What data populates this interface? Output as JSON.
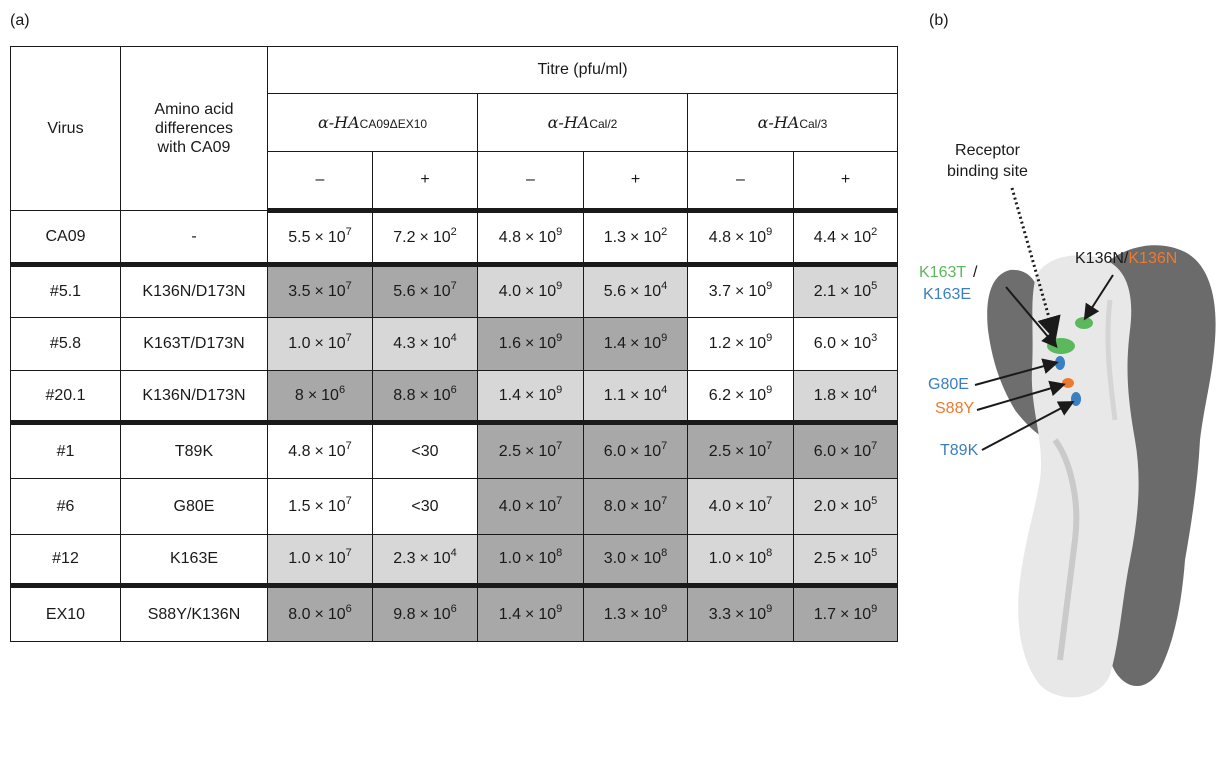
{
  "panel_labels": {
    "a": "(a)",
    "b": "(b)"
  },
  "table": {
    "header": {
      "virus": "Virus",
      "amino_acid": [
        "Amino acid",
        "differences",
        "with CA09"
      ],
      "titre": "Titre (pfu/ml)",
      "antibodies": [
        {
          "prefix": "α-HA",
          "subscript": "CA09ΔEX10"
        },
        {
          "prefix": "α-HA",
          "subscript": "Cal/2"
        },
        {
          "prefix": "α-HA",
          "subscript": "Cal/3"
        }
      ],
      "signs": [
        "–",
        "+",
        "–",
        "+",
        "–",
        "+"
      ]
    },
    "rows": [
      {
        "virus": "CA09",
        "differences": "-",
        "cells": [
          {
            "m": "5.5",
            "e": "7",
            "shade": 0
          },
          {
            "m": "7.2",
            "e": "2",
            "shade": 0
          },
          {
            "m": "4.8",
            "e": "9",
            "shade": 0
          },
          {
            "m": "1.3",
            "e": "2",
            "shade": 0
          },
          {
            "m": "4.8",
            "e": "9",
            "shade": 0
          },
          {
            "m": "4.4",
            "e": "2",
            "shade": 0
          }
        ]
      },
      {
        "virus": "#5.1",
        "differences": "K136N/D173N",
        "cells": [
          {
            "m": "3.5",
            "e": "7",
            "shade": 2
          },
          {
            "m": "5.6",
            "e": "7",
            "shade": 2
          },
          {
            "m": "4.0",
            "e": "9",
            "shade": 1
          },
          {
            "m": "5.6",
            "e": "4",
            "shade": 1
          },
          {
            "m": "3.7",
            "e": "9",
            "shade": 0
          },
          {
            "m": "2.1",
            "e": "5",
            "shade": 1
          }
        ]
      },
      {
        "virus": "#5.8",
        "differences": "K163T/D173N",
        "cells": [
          {
            "m": "1.0",
            "e": "7",
            "shade": 1
          },
          {
            "m": "4.3",
            "e": "4",
            "shade": 1
          },
          {
            "m": "1.6",
            "e": "9",
            "shade": 2
          },
          {
            "m": "1.4",
            "e": "9",
            "shade": 2
          },
          {
            "m": "1.2",
            "e": "9",
            "shade": 0
          },
          {
            "m": "6.0",
            "e": "3",
            "shade": 0
          }
        ]
      },
      {
        "virus": "#20.1",
        "differences": "K136N/D173N",
        "cells": [
          {
            "m": "8",
            "e": "6",
            "shade": 2
          },
          {
            "m": "8.8",
            "e": "6",
            "shade": 2
          },
          {
            "m": "1.4",
            "e": "9",
            "shade": 1
          },
          {
            "m": "1.1",
            "e": "4",
            "shade": 1
          },
          {
            "m": "6.2",
            "e": "9",
            "shade": 0
          },
          {
            "m": "1.8",
            "e": "4",
            "shade": 1
          }
        ]
      },
      {
        "virus": "#1",
        "differences": "T89K",
        "cells": [
          {
            "m": "4.8",
            "e": "7",
            "shade": 0
          },
          {
            "text": "<30",
            "shade": 0
          },
          {
            "m": "2.5",
            "e": "7",
            "shade": 2
          },
          {
            "m": "6.0",
            "e": "7",
            "shade": 2
          },
          {
            "m": "2.5",
            "e": "7",
            "shade": 2
          },
          {
            "m": "6.0",
            "e": "7",
            "shade": 2
          }
        ]
      },
      {
        "virus": "#6",
        "differences": "G80E",
        "cells": [
          {
            "m": "1.5",
            "e": "7",
            "shade": 0
          },
          {
            "text": "<30",
            "shade": 0
          },
          {
            "m": "4.0",
            "e": "7",
            "shade": 2
          },
          {
            "m": "8.0",
            "e": "7",
            "shade": 2
          },
          {
            "m": "4.0",
            "e": "7",
            "shade": 1
          },
          {
            "m": "2.0",
            "e": "5",
            "shade": 1
          }
        ]
      },
      {
        "virus": "#12",
        "differences": "K163E",
        "cells": [
          {
            "m": "1.0",
            "e": "7",
            "shade": 1
          },
          {
            "m": "2.3",
            "e": "4",
            "shade": 1
          },
          {
            "m": "1.0",
            "e": "8",
            "shade": 2
          },
          {
            "m": "3.0",
            "e": "8",
            "shade": 2
          },
          {
            "m": "1.0",
            "e": "8",
            "shade": 1
          },
          {
            "m": "2.5",
            "e": "5",
            "shade": 1
          }
        ]
      },
      {
        "virus": "EX10",
        "differences": "S88Y/K136N",
        "cells": [
          {
            "m": "8.0",
            "e": "6",
            "shade": 2
          },
          {
            "m": "9.8",
            "e": "6",
            "shade": 2
          },
          {
            "m": "1.4",
            "e": "9",
            "shade": 2
          },
          {
            "m": "1.3",
            "e": "9",
            "shade": 2
          },
          {
            "m": "3.3",
            "e": "9",
            "shade": 2
          },
          {
            "m": "1.7",
            "e": "9",
            "shade": 2
          }
        ]
      }
    ],
    "times_symbol": "×",
    "base": "10"
  },
  "structure": {
    "receptor_label": [
      "Receptor",
      "binding site"
    ],
    "annotations": {
      "k163t": "K163T",
      "slash": "/",
      "k163e": "K163E",
      "k136n_black": "K136N",
      "k136n_orange": "K136N",
      "g80e": "G80E",
      "s88y": "S88Y",
      "t89k": "T89K"
    },
    "colors": {
      "green": "#5cb85c",
      "blue": "#3a7fc2",
      "orange": "#ee7a30",
      "light_surface": "#e8e8e8",
      "dark_surface": "#6b6b6b",
      "shade_light": "#d7d7d7",
      "shade_dark": "#a8a8a8"
    }
  }
}
